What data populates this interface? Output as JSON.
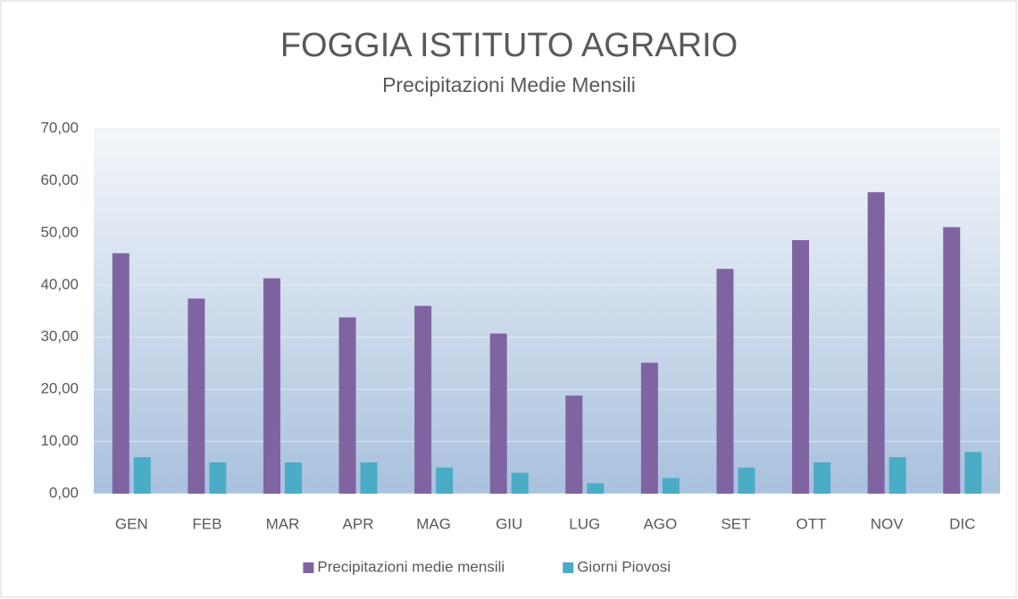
{
  "chart_data": {
    "type": "bar",
    "title": "FOGGIA ISTITUTO AGRARIO",
    "subtitle": "Precipitazioni Medie Mensili",
    "categories": [
      "GEN",
      "FEB",
      "MAR",
      "APR",
      "MAG",
      "GIU",
      "LUG",
      "AGO",
      "SET",
      "OTT",
      "NOV",
      "DIC"
    ],
    "series": [
      {
        "name": "Precipitazioni medie mensili",
        "color": "#8064a2",
        "values": [
          46.1,
          37.4,
          41.3,
          33.8,
          36.0,
          30.7,
          18.8,
          25.1,
          43.1,
          48.6,
          57.8,
          51.1
        ]
      },
      {
        "name": "Giorni Piovosi",
        "color": "#4bacc6",
        "values": [
          7,
          6,
          6,
          6,
          5,
          4,
          2,
          3,
          5,
          6,
          7,
          8
        ]
      }
    ],
    "ylim": [
      0,
      70
    ],
    "yticks": [
      {
        "value": 0,
        "label": "0,00"
      },
      {
        "value": 10,
        "label": "10,00"
      },
      {
        "value": 20,
        "label": "20,00"
      },
      {
        "value": 30,
        "label": "30,00"
      },
      {
        "value": 40,
        "label": "40,00"
      },
      {
        "value": 50,
        "label": "50,00"
      },
      {
        "value": 60,
        "label": "60,00"
      },
      {
        "value": 70,
        "label": "70,00"
      }
    ],
    "grid": true,
    "legend": "bottom"
  }
}
